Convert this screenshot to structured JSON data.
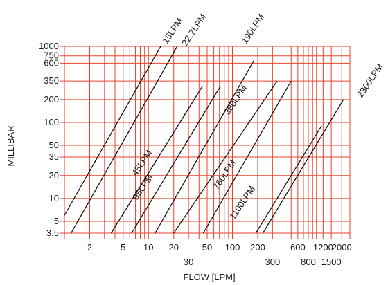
{
  "chart_data": {
    "type": "line",
    "title": "",
    "xlabel": "FLOW [LPM]",
    "ylabel": "MILLIBAR",
    "x_scale": "log",
    "y_scale": "log",
    "xlim": [
      1,
      2500
    ],
    "ylim": [
      3.5,
      1000
    ],
    "grid": true,
    "grid_color": "#e8432b",
    "line_color": "#000000",
    "x_ticks_upper": [
      "2",
      "5",
      "10",
      "20",
      "50",
      "100",
      "200",
      "600",
      "1200",
      "2000"
    ],
    "x_ticks_lower": [
      "30",
      "300",
      "800",
      "1500"
    ],
    "y_ticks": [
      "1000",
      "750",
      "600",
      "350",
      "200",
      "100",
      "50",
      "35",
      "20",
      "10",
      "5",
      "3.5"
    ],
    "series": [
      {
        "name": "15LPM",
        "points": [
          [
            1.0,
            6
          ],
          [
            14,
            1000
          ]
        ]
      },
      {
        "name": "22.7LPM",
        "points": [
          [
            1.2,
            3.5
          ],
          [
            22,
            1000
          ]
        ]
      },
      {
        "name": "45LPM",
        "points": [
          [
            3.6,
            3.5
          ],
          [
            44,
            300
          ]
        ]
      },
      {
        "name": "95LPM",
        "points": [
          [
            6.3,
            3.5
          ],
          [
            72,
            300
          ]
        ]
      },
      {
        "name": "190LPM",
        "points": [
          [
            12,
            3.5
          ],
          [
            180,
            650
          ]
        ]
      },
      {
        "name": "380LPM",
        "points": [
          [
            20,
            3.5
          ],
          [
            340,
            350
          ]
        ]
      },
      {
        "name": "760LPM",
        "points": [
          [
            45,
            3.5
          ],
          [
            500,
            350
          ]
        ]
      },
      {
        "name": "1100LPM",
        "points": [
          [
            190,
            3.5
          ],
          [
            1150,
            90
          ]
        ]
      },
      {
        "name": "2300LPM",
        "points": [
          [
            230,
            3.5
          ],
          [
            2100,
            200
          ]
        ]
      }
    ],
    "series_labels": [
      {
        "text": "15LPM"
      },
      {
        "text": "22.7LPM"
      },
      {
        "text": "190LPM"
      },
      {
        "text": "2300LPM"
      },
      {
        "text": "380LPM"
      },
      {
        "text": "45LPM"
      },
      {
        "text": "760LPM"
      },
      {
        "text": "95LPM"
      },
      {
        "text": "1100LPM"
      }
    ]
  }
}
